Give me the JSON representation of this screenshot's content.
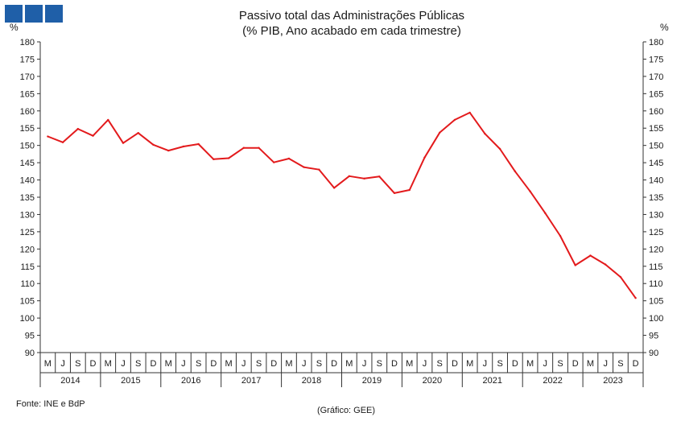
{
  "header": {
    "title_line1": "Passivo total das Administrações Públicas",
    "title_line2": "(% PIB, Ano acabado em cada trimestre)"
  },
  "footer": {
    "source": "Fonte: INE e BdP",
    "credit": "(Gráfico: GEE)"
  },
  "colors": {
    "line": "#e31a1c",
    "logo": "#1f5fa8",
    "axis": "#333333"
  },
  "chart_data": {
    "type": "line",
    "ylabel_left": "%",
    "ylabel_right": "%",
    "ylim": [
      90,
      180
    ],
    "y_ticks": [
      90,
      95,
      100,
      105,
      110,
      115,
      120,
      125,
      130,
      135,
      140,
      145,
      150,
      155,
      160,
      165,
      170,
      175,
      180
    ],
    "quarter_labels": [
      "M",
      "J",
      "S",
      "D",
      "M",
      "J",
      "S",
      "D",
      "M",
      "J",
      "S",
      "D",
      "M",
      "J",
      "S",
      "D",
      "M",
      "J",
      "S",
      "D",
      "M",
      "J",
      "S",
      "D",
      "M",
      "J",
      "S",
      "D",
      "M",
      "J",
      "S",
      "D",
      "M",
      "J",
      "S",
      "D",
      "M",
      "J",
      "S",
      "D"
    ],
    "years": [
      "2014",
      "2015",
      "2016",
      "2017",
      "2018",
      "2019",
      "2020",
      "2021",
      "2022",
      "2023"
    ],
    "series": [
      {
        "values": [
          152.6,
          150.9,
          154.8,
          152.8,
          157.4,
          150.7,
          153.6,
          150.2,
          148.5,
          149.7,
          150.4,
          146.0,
          146.3,
          149.3,
          149.3,
          145.1,
          146.2,
          143.7,
          143.0,
          137.7,
          141.1,
          140.4,
          141.0,
          136.2,
          137.1,
          146.5,
          153.7,
          157.4,
          159.5,
          153.4,
          149.0,
          142.5,
          136.7,
          130.4,
          123.8,
          115.3,
          118.1,
          115.5,
          111.9,
          105.8
        ]
      }
    ]
  }
}
